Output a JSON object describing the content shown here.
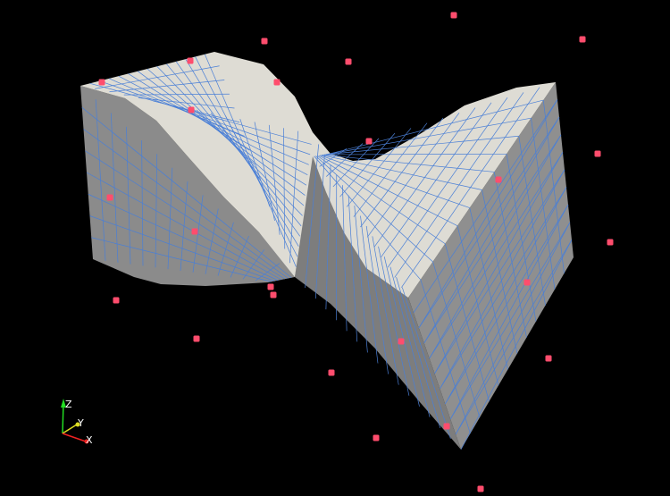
{
  "viewport": {
    "background": "#000000",
    "surface_color": "#dcdad2",
    "side_color": "#8e8e8e",
    "mesh_line_color": "#4a7fd6",
    "point_color": "#ff4d6d"
  },
  "scatter_point_count": 25,
  "orientation_axes": {
    "z": {
      "label": "Z",
      "color": "#22dd22"
    },
    "y": {
      "label": "Y",
      "color": "#dddd22"
    },
    "x": {
      "label": "X",
      "color": "#ee2222"
    }
  }
}
